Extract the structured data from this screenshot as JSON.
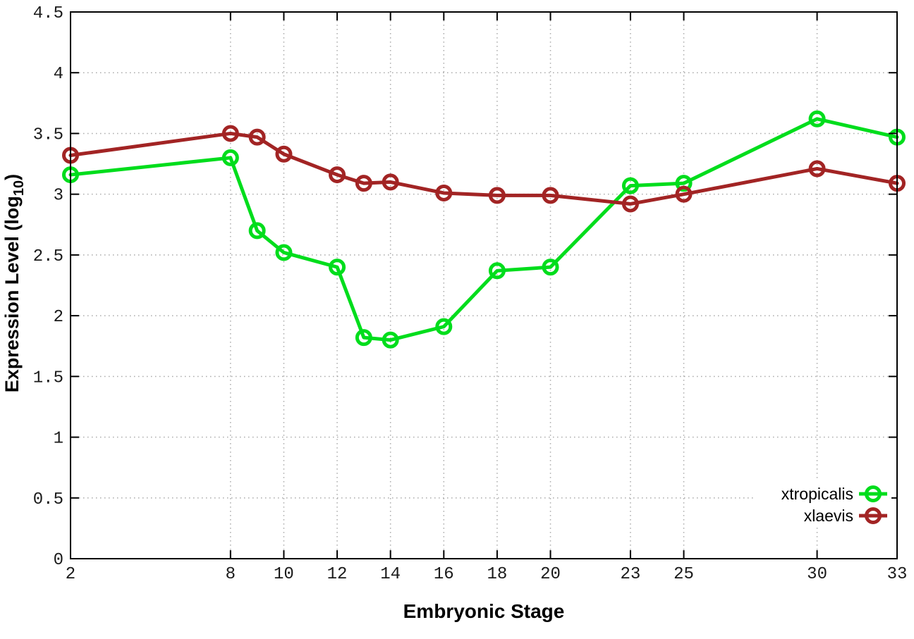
{
  "figure": {
    "background": "#ffffff",
    "border_color": "#000000",
    "grid_color": "#aaaaaa",
    "xlabel": "Embryonic Stage",
    "ylabel_prefix": "Expression Level (log",
    "ylabel_sub": "10",
    "ylabel_suffix": ")"
  },
  "chart_data": {
    "type": "line",
    "title": "",
    "xlabel": "Embryonic Stage",
    "ylabel": "Expression Level (log10)",
    "x": [
      2,
      8,
      9,
      10,
      12,
      13,
      14,
      16,
      18,
      20,
      23,
      25,
      30,
      33
    ],
    "series": [
      {
        "name": "xtropicalis",
        "color": "#00dd1c",
        "marker": "open-circle",
        "values": [
          3.16,
          3.3,
          2.7,
          2.52,
          2.4,
          1.82,
          1.8,
          1.91,
          2.37,
          2.4,
          3.07,
          3.09,
          3.62,
          3.47
        ]
      },
      {
        "name": "xlaevis",
        "color": "#a22424",
        "marker": "open-circle",
        "values": [
          3.32,
          3.5,
          3.47,
          3.33,
          3.16,
          3.09,
          3.1,
          3.01,
          2.99,
          2.99,
          2.92,
          3.0,
          3.21,
          3.09
        ]
      }
    ],
    "xticks": [
      2,
      8,
      10,
      12,
      14,
      16,
      18,
      20,
      23,
      25,
      30,
      33
    ],
    "yticks": [
      0,
      0.5,
      1,
      1.5,
      2,
      2.5,
      3,
      3.5,
      4,
      4.5
    ],
    "xlim": [
      2,
      33
    ],
    "ylim": [
      0,
      4.5
    ],
    "grid": true,
    "legend_position": "bottom-right"
  }
}
